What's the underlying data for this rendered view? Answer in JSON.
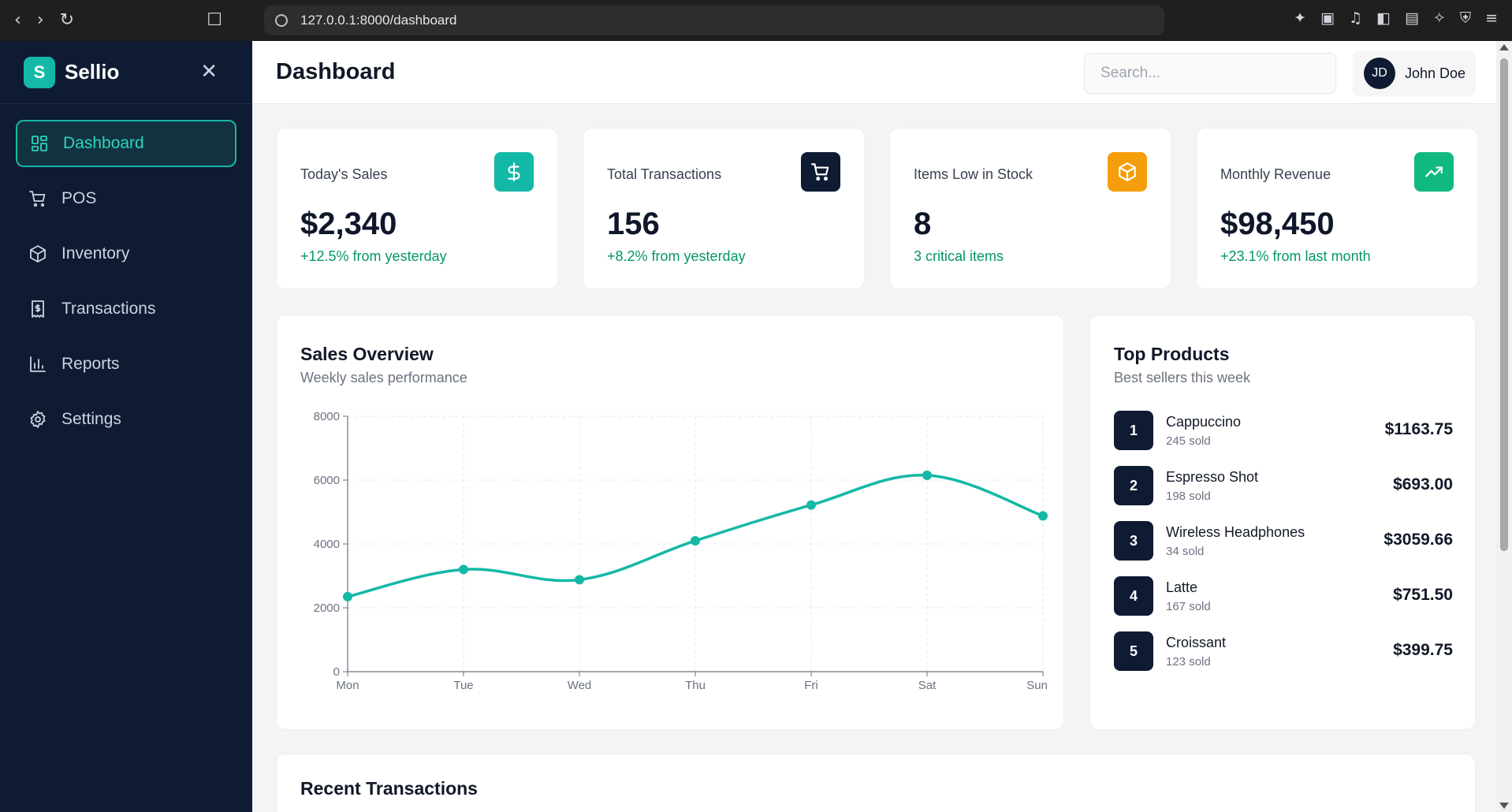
{
  "browser": {
    "url": "127.0.0.1:8000/dashboard",
    "icons": [
      "back-icon",
      "forward-icon",
      "reload-icon",
      "bookmark-icon",
      "site-info-icon"
    ]
  },
  "sidebar": {
    "brand_letter": "S",
    "brand_name": "Sellio",
    "items": [
      {
        "label": "Dashboard",
        "icon": "grid-icon",
        "active": true
      },
      {
        "label": "POS",
        "icon": "cart-icon",
        "active": false
      },
      {
        "label": "Inventory",
        "icon": "box-icon",
        "active": false
      },
      {
        "label": "Transactions",
        "icon": "receipt-icon",
        "active": false
      },
      {
        "label": "Reports",
        "icon": "bar-chart-icon",
        "active": false
      },
      {
        "label": "Settings",
        "icon": "gear-icon",
        "active": false
      }
    ],
    "accent": "#14b8a6",
    "background": "#0f1a33"
  },
  "header": {
    "title": "Dashboard",
    "search_placeholder": "Search...",
    "user_initials": "JD",
    "user_name": "John Doe"
  },
  "stats": [
    {
      "label": "Today's Sales",
      "value": "$2,340",
      "sub": "+12.5% from yesterday",
      "icon": "dollar-icon",
      "color": "#14b8a6"
    },
    {
      "label": "Total Transactions",
      "value": "156",
      "sub": "+8.2% from yesterday",
      "icon": "cart-icon",
      "color": "#0f1a33"
    },
    {
      "label": "Items Low in Stock",
      "value": "8",
      "sub": "3 critical items",
      "icon": "box-icon",
      "color": "#f59e0b"
    },
    {
      "label": "Monthly Revenue",
      "value": "$98,450",
      "sub": "+23.1% from last month",
      "icon": "trending-up-icon",
      "color": "#10b981"
    }
  ],
  "sales_overview": {
    "title": "Sales Overview",
    "subtitle": "Weekly sales performance"
  },
  "chart_data": {
    "type": "line",
    "categories": [
      "Mon",
      "Tue",
      "Wed",
      "Thu",
      "Fri",
      "Sat",
      "Sun"
    ],
    "values": [
      2350,
      3200,
      2880,
      4100,
      5220,
      6150,
      4880
    ],
    "title": "",
    "xlabel": "",
    "ylabel": "",
    "ylim": [
      0,
      8000
    ],
    "yticks": [
      "0",
      "2000",
      "4000",
      "6000",
      "8000"
    ],
    "grid": true,
    "color": "#14b8a6"
  },
  "top_products": {
    "title": "Top Products",
    "subtitle": "Best sellers this week",
    "items": [
      {
        "rank": "1",
        "name": "Cappuccino",
        "sold": "245 sold",
        "amount": "$1163.75"
      },
      {
        "rank": "2",
        "name": "Espresso Shot",
        "sold": "198 sold",
        "amount": "$693.00"
      },
      {
        "rank": "3",
        "name": "Wireless Headphones",
        "sold": "34 sold",
        "amount": "$3059.66"
      },
      {
        "rank": "4",
        "name": "Latte",
        "sold": "167 sold",
        "amount": "$751.50"
      },
      {
        "rank": "5",
        "name": "Croissant",
        "sold": "123 sold",
        "amount": "$399.75"
      }
    ]
  },
  "recent_transactions": {
    "title": "Recent Transactions"
  }
}
